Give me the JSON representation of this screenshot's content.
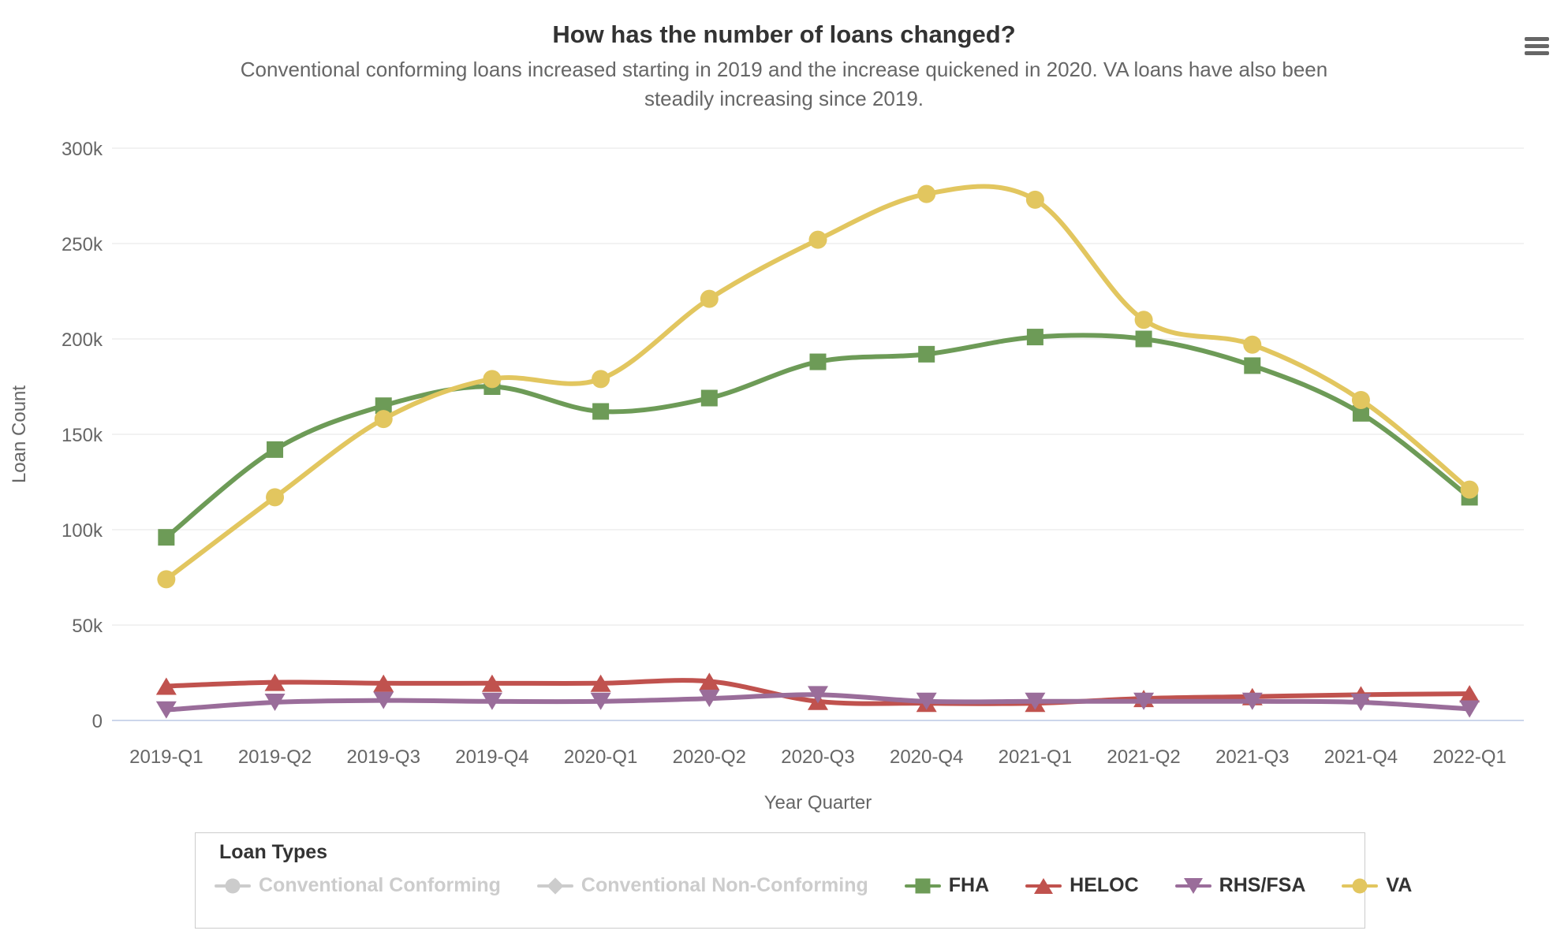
{
  "header": {
    "title": "How has the number of loans changed?",
    "subtitle_line1": "Conventional conforming loans increased starting in 2019 and the increase quickened in 2020. VA loans have also been",
    "subtitle_line2": "steadily increasing since 2019.",
    "menu_icon": "hamburger-icon"
  },
  "chart_data": {
    "type": "line",
    "title": "How has the number of loans changed?",
    "xlabel": "Year Quarter",
    "ylabel": "Loan Count",
    "values_unit": "thousands of loans",
    "ylim": [
      0,
      300
    ],
    "yticks": [
      0,
      50,
      100,
      150,
      200,
      250,
      300
    ],
    "ytick_labels": [
      "0",
      "50k",
      "100k",
      "150k",
      "200k",
      "250k",
      "300k"
    ],
    "grid": "horizontal-only",
    "categories": [
      "2019-Q1",
      "2019-Q2",
      "2019-Q3",
      "2019-Q4",
      "2020-Q1",
      "2020-Q2",
      "2020-Q3",
      "2020-Q4",
      "2021-Q1",
      "2021-Q2",
      "2021-Q3",
      "2021-Q4",
      "2022-Q1"
    ],
    "series": [
      {
        "name": "FHA",
        "marker": "square",
        "color": "#6d9b57",
        "values": [
          96,
          142,
          165,
          175,
          162,
          169,
          188,
          192,
          201,
          200,
          186,
          161,
          117
        ]
      },
      {
        "name": "HELOC",
        "marker": "triangle-up",
        "color": "#c0524e",
        "values": [
          18,
          20,
          19.5,
          19.5,
          19.5,
          20.5,
          10,
          9,
          9,
          11.5,
          12.5,
          13.5,
          14
        ]
      },
      {
        "name": "RHS/FSA",
        "marker": "triangle-down",
        "color": "#9a6d9a",
        "values": [
          5.5,
          9.5,
          10.5,
          10,
          10,
          11.5,
          13.5,
          10,
          10,
          10,
          10,
          9.5,
          6
        ]
      },
      {
        "name": "VA",
        "marker": "circle",
        "color": "#e2c65f",
        "values": [
          74,
          117,
          158,
          179,
          179,
          221,
          252,
          276,
          273,
          210,
          197,
          168,
          121
        ]
      }
    ],
    "legend": {
      "title": "Loan Types",
      "position": "bottom",
      "items": [
        {
          "label": "Conventional Conforming",
          "marker": "circle",
          "enabled": false,
          "color": "#cccccc"
        },
        {
          "label": "Conventional Non-Conforming",
          "marker": "diamond",
          "enabled": false,
          "color": "#cccccc"
        },
        {
          "label": "FHA",
          "marker": "square",
          "enabled": true,
          "color": "#6d9b57"
        },
        {
          "label": "HELOC",
          "marker": "triangle-up",
          "enabled": true,
          "color": "#c0524e"
        },
        {
          "label": "RHS/FSA",
          "marker": "triangle-down",
          "enabled": true,
          "color": "#9a6d9a"
        },
        {
          "label": "VA",
          "marker": "circle",
          "enabled": true,
          "color": "#e2c65f"
        }
      ]
    },
    "colors": {
      "grid_line": "#e6e6e6",
      "x_axis_line": "#ccd6eb",
      "axis_text": "#666666",
      "title_text": "#333333",
      "disabled_legend": "#cccccc"
    }
  }
}
